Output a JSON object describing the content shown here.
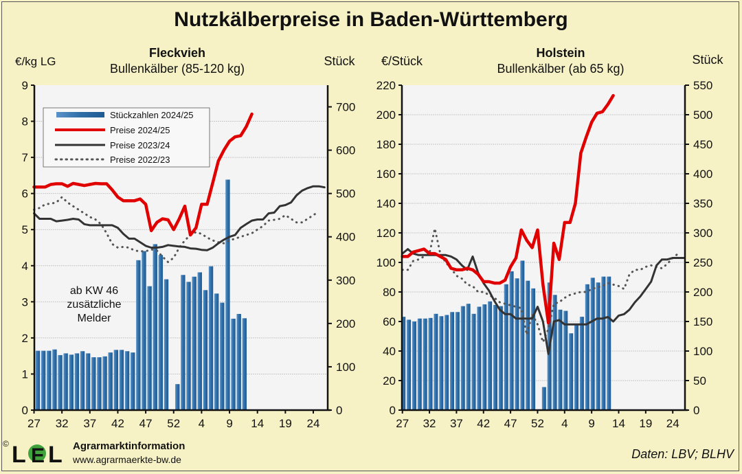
{
  "title": "Nutzkälberpreise in Baden-Württemberg",
  "footer": {
    "logo_text": "LEL",
    "copyright": "©",
    "org": "Agrarmarktinformation",
    "url": "www.agrarmaerkte-bw.de",
    "source": "Daten: LBV; BLHV"
  },
  "colors": {
    "background": "#f6f2c6",
    "bars": "#2f6ea8",
    "preise_2024_25": "#e00000",
    "preise_2023_24": "#333333",
    "preise_2022_23": "#555555",
    "plot_bg": "#f4f4f4"
  },
  "legend": {
    "placement": "top-left of left chart",
    "items": [
      "Stückzahlen 2024/25",
      "Preise 2024/25",
      "Preise 2023/24",
      "Preise 2022/23"
    ]
  },
  "chart_data": [
    {
      "type": "bar+line",
      "title": "Fleckvieh",
      "subtitle": "Bullenkälber (85-120 kg)",
      "ylabel": "€/kg LG",
      "y2label": "Stück",
      "ylim": [
        0,
        9
      ],
      "yticks": [
        0,
        1,
        2,
        3,
        4,
        5,
        6,
        7,
        8,
        9
      ],
      "y2lim": [
        0,
        750
      ],
      "y2ticks": [
        0,
        100,
        200,
        300,
        400,
        500,
        600,
        700
      ],
      "xtick_labels": [
        "27",
        "32",
        "37",
        "42",
        "47",
        "52",
        "4",
        "9",
        "14",
        "19",
        "24"
      ],
      "x_start_week": 27,
      "annotation": [
        "ab KW 46",
        "zusätzliche",
        "Melder"
      ],
      "grid": true,
      "bars": {
        "name": "Stückzahlen 2024/25",
        "axis": "y2",
        "values": [
          137,
          137,
          137,
          140,
          127,
          131,
          128,
          131,
          136,
          131,
          122,
          122,
          124,
          133,
          139,
          139,
          136,
          133,
          346,
          367,
          286,
          383,
          358,
          302,
          0,
          60,
          312,
          296,
          308,
          318,
          277,
          332,
          269,
          248,
          532,
          211,
          222,
          212
        ]
      },
      "series": [
        {
          "name": "Preise 2024/25",
          "style": "solid-red",
          "values": [
            6.18,
            6.18,
            6.18,
            6.25,
            6.27,
            6.27,
            6.2,
            6.28,
            6.25,
            6.22,
            6.25,
            6.28,
            6.27,
            6.27,
            6.1,
            5.9,
            5.8,
            5.8,
            5.8,
            5.85,
            5.7,
            4.97,
            5.2,
            5.3,
            5.27,
            5.0,
            5.3,
            5.65,
            4.85,
            5.05,
            5.7,
            5.7,
            6.3,
            6.9,
            7.2,
            7.45,
            7.57,
            7.6,
            7.85,
            8.2
          ]
        },
        {
          "name": "Preise 2023/24",
          "style": "solid-black",
          "values": [
            5.45,
            5.3,
            5.3,
            5.3,
            5.23,
            5.25,
            5.27,
            5.3,
            5.28,
            5.15,
            5.12,
            5.12,
            5.12,
            5.12,
            5.12,
            5.05,
            4.88,
            4.75,
            4.75,
            4.65,
            4.55,
            4.5,
            4.5,
            4.52,
            4.57,
            4.55,
            4.53,
            4.52,
            4.48,
            4.47,
            4.44,
            4.43,
            4.5,
            4.62,
            4.72,
            4.8,
            4.85,
            5.05,
            5.15,
            5.25,
            5.28,
            5.28,
            5.45,
            5.47,
            5.65,
            5.68,
            5.75,
            5.95,
            6.08,
            6.15,
            6.2,
            6.2,
            6.17
          ]
        },
        {
          "name": "Preise 2022/23",
          "style": "dotted",
          "values": [
            5.55,
            5.6,
            5.7,
            5.72,
            5.75,
            5.9,
            5.75,
            5.65,
            5.55,
            5.45,
            5.35,
            5.28,
            5.15,
            4.9,
            4.6,
            4.5,
            4.52,
            4.5,
            4.42,
            4.4,
            4.4,
            4.45,
            4.42,
            4.25,
            4.1,
            4.22,
            4.5,
            4.7,
            4.85,
            4.93,
            4.88,
            4.78,
            4.7,
            4.65,
            4.62,
            4.7,
            4.75,
            4.8,
            4.85,
            4.9,
            5.0,
            5.1,
            5.25,
            5.27,
            5.3,
            5.4,
            5.3,
            5.2,
            5.2,
            5.3,
            5.4,
            5.5
          ]
        }
      ]
    },
    {
      "type": "bar+line",
      "title": "Holstein",
      "subtitle": "Bullenkälber (ab 65 kg)",
      "ylabel": "€/Stück",
      "y2label": "Stück",
      "ylim": [
        0,
        220
      ],
      "yticks": [
        0,
        20,
        40,
        60,
        80,
        100,
        120,
        140,
        160,
        180,
        200,
        220
      ],
      "y2lim": [
        0,
        550
      ],
      "y2ticks": [
        0,
        50,
        100,
        150,
        200,
        250,
        300,
        350,
        400,
        450,
        500,
        550
      ],
      "xtick_labels": [
        "27",
        "32",
        "37",
        "42",
        "47",
        "52",
        "4",
        "9",
        "14",
        "19",
        "24"
      ],
      "x_start_week": 27,
      "grid": true,
      "bars": {
        "name": "Stückzahlen 2024/25",
        "axis": "y2",
        "values": [
          158,
          153,
          150,
          155,
          155,
          156,
          163,
          159,
          161,
          166,
          166,
          176,
          180,
          163,
          175,
          179,
          184,
          178,
          176,
          213,
          235,
          223,
          253,
          219,
          206,
          0,
          39,
          216,
          195,
          170,
          168,
          130,
          145,
          158,
          213,
          224,
          216,
          226,
          226
        ]
      },
      "series": [
        {
          "name": "Preise 2024/25",
          "style": "solid-red",
          "values": [
            104,
            104,
            107,
            108,
            109,
            106,
            106,
            104,
            102,
            96,
            95,
            95,
            96,
            95,
            92,
            87,
            87,
            86,
            86,
            88,
            97,
            103,
            122,
            115,
            110,
            122,
            85,
            59,
            113,
            102,
            127,
            127,
            140,
            174,
            185,
            195,
            201,
            202,
            207,
            213
          ]
        },
        {
          "name": "Preise 2023/24",
          "style": "solid-black",
          "values": [
            106,
            109,
            106,
            105,
            105,
            105,
            105,
            105,
            105,
            104,
            102,
            98,
            95,
            104,
            93,
            86,
            81,
            74,
            68,
            65,
            65,
            62,
            62,
            62,
            62,
            70,
            60,
            38,
            60,
            61,
            58,
            58,
            58,
            58,
            58,
            60,
            62,
            62,
            63,
            60,
            64,
            65,
            68,
            73,
            77,
            82,
            87,
            98,
            102,
            102,
            103,
            103,
            103
          ]
        },
        {
          "name": "Preise 2022/23",
          "style": "dotted",
          "values": [
            95,
            95,
            101,
            102,
            104,
            106,
            123,
            106,
            100,
            96,
            91,
            89,
            85,
            84,
            80,
            80,
            78,
            76,
            73,
            72,
            71,
            70,
            69,
            51,
            65,
            58,
            46,
            55,
            72,
            73,
            76,
            78,
            79,
            80,
            80,
            82,
            83,
            84,
            86,
            85,
            84,
            82,
            92,
            95,
            95,
            97,
            98,
            97,
            96,
            99,
            103,
            106
          ]
        }
      ]
    }
  ]
}
